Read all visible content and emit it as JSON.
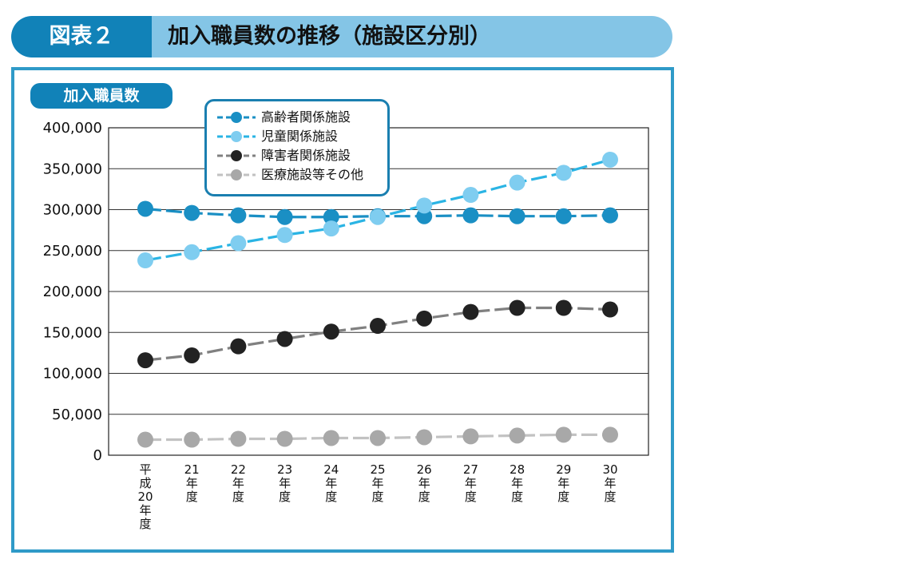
{
  "banner": {
    "tag": "図表２",
    "title": "加入職員数の推移（施設区分別）"
  },
  "colors": {
    "banner_dark": "#1182b8",
    "banner_light": "#84c5e6",
    "frame": "#2f9ac8"
  },
  "chart_data": {
    "type": "line",
    "ylabel": "加入職員数",
    "ylim": [
      0,
      400000
    ],
    "yticks": [
      0,
      50000,
      100000,
      150000,
      200000,
      250000,
      300000,
      350000,
      400000
    ],
    "ytick_labels": [
      "0",
      "50,000",
      "100,000",
      "150,000",
      "200,000",
      "250,000",
      "300,000",
      "350,000",
      "400,000"
    ],
    "grid": "horizontal",
    "legend_position": "top-left",
    "categories": [
      "平成20年度",
      "21年度",
      "22年度",
      "23年度",
      "24年度",
      "25年度",
      "26年度",
      "27年度",
      "28年度",
      "29年度",
      "30年度"
    ],
    "category_lines": [
      [
        "平",
        "成",
        "20",
        "年",
        "度"
      ],
      [
        "21",
        "年",
        "度"
      ],
      [
        "22",
        "年",
        "度"
      ],
      [
        "23",
        "年",
        "度"
      ],
      [
        "24",
        "年",
        "度"
      ],
      [
        "25",
        "年",
        "度"
      ],
      [
        "26",
        "年",
        "度"
      ],
      [
        "27",
        "年",
        "度"
      ],
      [
        "28",
        "年",
        "度"
      ],
      [
        "29",
        "年",
        "度"
      ],
      [
        "30",
        "年",
        "度"
      ]
    ],
    "series": [
      {
        "name": "高齢者関係施設",
        "color": "#1a8fc4",
        "line_color": "#1a8fc4",
        "values": [
          301000,
          296000,
          293000,
          291000,
          291000,
          292000,
          292000,
          293000,
          292000,
          292000,
          293000
        ]
      },
      {
        "name": "児童関係施設",
        "color": "#7fcdf0",
        "line_color": "#2ab4e4",
        "values": [
          238000,
          248000,
          259000,
          269000,
          277000,
          291000,
          305000,
          318000,
          333000,
          345000,
          361000
        ]
      },
      {
        "name": "障害者関係施設",
        "color": "#222222",
        "line_color": "#808080",
        "values": [
          116000,
          122000,
          133000,
          142000,
          151000,
          158000,
          167000,
          175000,
          180000,
          180000,
          178000
        ]
      },
      {
        "name": "医療施設等その他",
        "color": "#a8a8a8",
        "line_color": "#c2c2c2",
        "values": [
          19000,
          19000,
          20000,
          20000,
          21000,
          21000,
          22000,
          23000,
          24000,
          25000,
          25000
        ]
      }
    ]
  }
}
